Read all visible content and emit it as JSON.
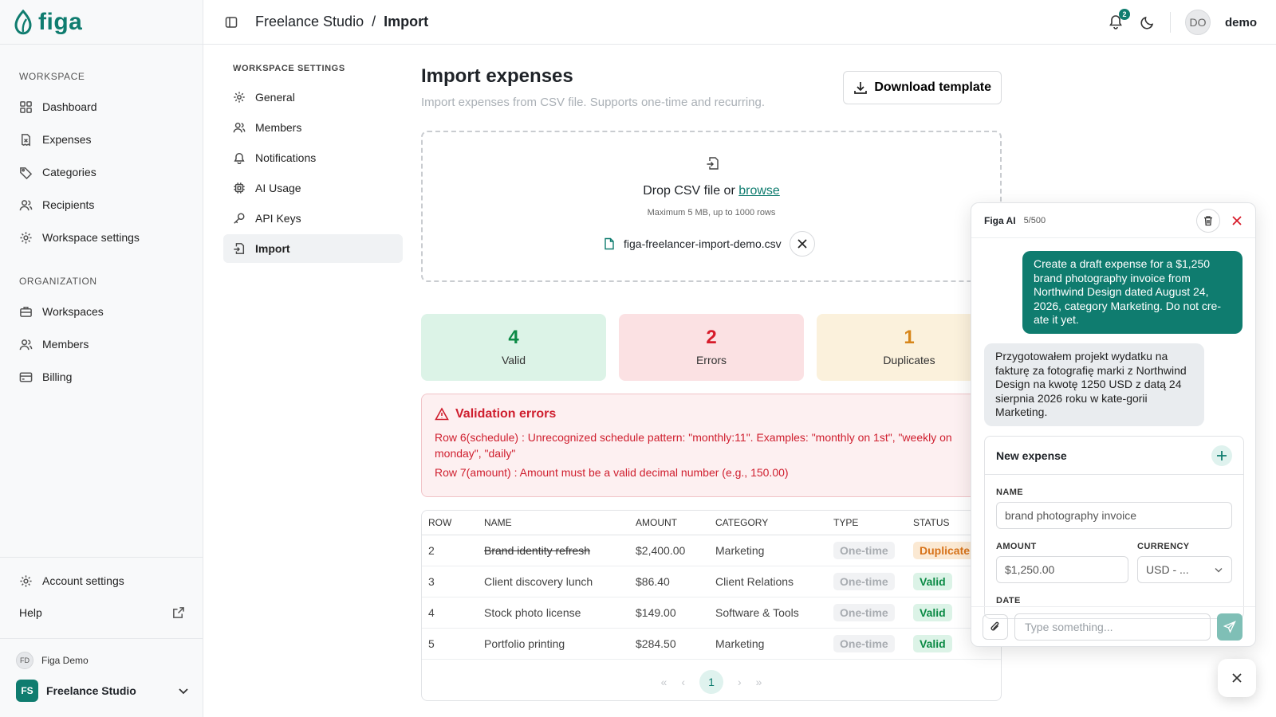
{
  "brand": {
    "name": "figa",
    "color": "#0f7c6f"
  },
  "sidebar": {
    "workspace_section": "WORKSPACE",
    "workspace_items": [
      {
        "label": "Dashboard",
        "icon": "grid-icon"
      },
      {
        "label": "Expenses",
        "icon": "receipt-icon"
      },
      {
        "label": "Categories",
        "icon": "tag-icon"
      },
      {
        "label": "Recipients",
        "icon": "users-icon"
      },
      {
        "label": "Workspace settings",
        "icon": "gear-icon"
      }
    ],
    "org_section": "ORGANIZATION",
    "org_items": [
      {
        "label": "Workspaces",
        "icon": "briefcase-icon"
      },
      {
        "label": "Members",
        "icon": "users-icon"
      },
      {
        "label": "Billing",
        "icon": "credit-card-icon"
      }
    ],
    "account_settings": "Account settings",
    "help": "Help",
    "user_initials": "FD",
    "user_name": "Figa Demo",
    "workspace_initials": "FS",
    "workspace_name": "Freelance Studio"
  },
  "header": {
    "breadcrumb_parent": "Freelance Studio",
    "breadcrumb_sep": "/",
    "breadcrumb_current": "Import",
    "notif_count": "2",
    "user_initials": "DO",
    "user_name": "demo"
  },
  "settings_nav": {
    "title": "WORKSPACE SETTINGS",
    "items": [
      {
        "label": "General",
        "icon": "gear-icon"
      },
      {
        "label": "Members",
        "icon": "users-icon"
      },
      {
        "label": "Notifications",
        "icon": "bell-icon"
      },
      {
        "label": "AI Usage",
        "icon": "cpu-icon"
      },
      {
        "label": "API Keys",
        "icon": "key-icon"
      },
      {
        "label": "Import",
        "icon": "file-import-icon",
        "active": true
      }
    ]
  },
  "main": {
    "title": "Import expenses",
    "subtitle": "Import expenses from CSV file. Supports one-time and recurring.",
    "download_label": "Download template",
    "drop_text": "Drop CSV file or",
    "browse_label": "browse",
    "drop_hint": "Maximum 5 MB, up to 1000 rows",
    "file_name": "figa-freelancer-import-demo.csv",
    "stats": {
      "valid_count": "4",
      "valid_label": "Valid",
      "errors_count": "2",
      "errors_label": "Errors",
      "dup_count": "1",
      "dup_label": "Duplicates"
    },
    "validation": {
      "title": "Validation errors",
      "errors": [
        {
          "row": "Row 6(schedule) :",
          "message": "Unrecognized schedule pattern: \"monthly:11\". Examples: \"monthly on 1st\", \"weekly on monday\", \"daily\""
        },
        {
          "row": "Row 7(amount) :",
          "message": "Amount must be a valid decimal number (e.g., 150.00)"
        }
      ]
    },
    "table": {
      "headers": [
        "ROW",
        "NAME",
        "AMOUNT",
        "CATEGORY",
        "TYPE",
        "STATUS"
      ],
      "rows": [
        {
          "row": "2",
          "name": "Brand identity refresh",
          "amount": "$2,400.00",
          "category": "Marketing",
          "type": "One-time",
          "status": "Duplicate"
        },
        {
          "row": "3",
          "name": "Client discovery lunch",
          "amount": "$86.40",
          "category": "Client Relations",
          "type": "One-time",
          "status": "Valid"
        },
        {
          "row": "4",
          "name": "Stock photo license",
          "amount": "$149.00",
          "category": "Software & Tools",
          "type": "One-time",
          "status": "Valid"
        },
        {
          "row": "5",
          "name": "Portfolio printing",
          "amount": "$284.50",
          "category": "Marketing",
          "type": "One-time",
          "status": "Valid"
        }
      ],
      "current_page": "1"
    }
  },
  "ai": {
    "title": "Figa AI",
    "count": "5/500",
    "user_message": "Create a draft expense for a $1,250 brand photography invoice from Northwind Design dated August 24, 2026, category Marketing. Do not cre-ate it yet.",
    "ai_message": "Przygotowałem projekt wydatku na fakturę za fotografię marki z Northwind Design na kwotę 1250 USD z datą 24 sierpnia 2026 roku w kate-gorii Marketing.",
    "card_title": "New expense",
    "name_label": "NAME",
    "name_value": "brand photography invoice",
    "amount_label": "AMOUNT",
    "amount_value": "$1,250.00",
    "currency_label": "CURRENCY",
    "currency_value": "USD - ...",
    "date_label": "DATE",
    "input_placeholder": "Type something..."
  }
}
